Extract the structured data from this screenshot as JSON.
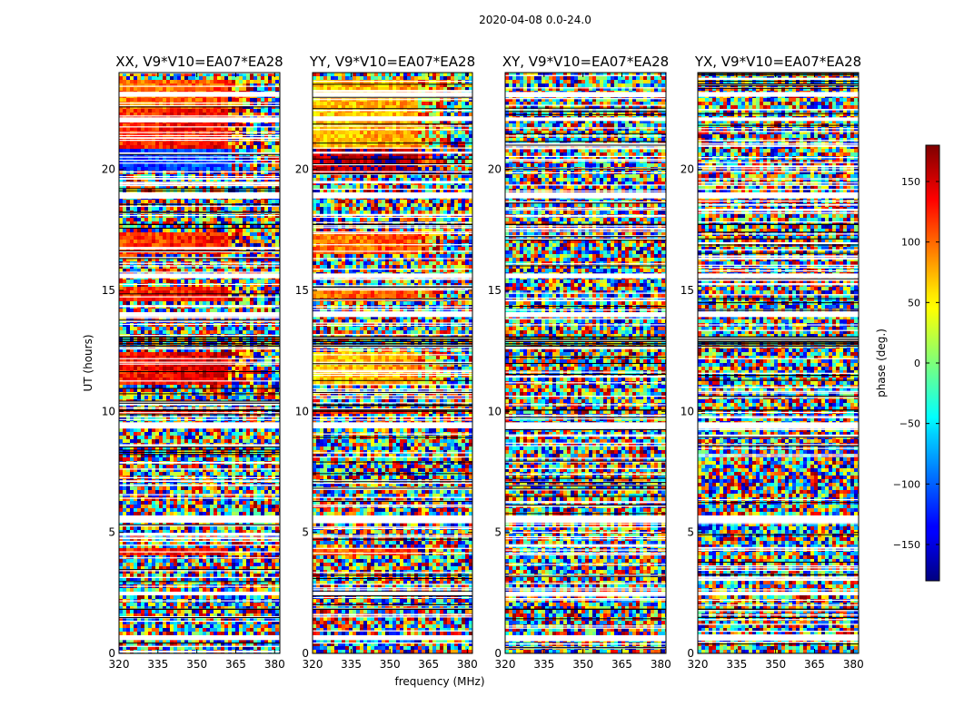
{
  "figure_title": "2020-04-08 0.0-24.0",
  "panels": [
    {
      "title": "XX, V9*V10=EA07*EA28"
    },
    {
      "title": "YY, V9*V10=EA07*EA28"
    },
    {
      "title": "XY, V9*V10=EA07*EA28"
    },
    {
      "title": "YX, V9*V10=EA07*EA28"
    }
  ],
  "xlabel": "frequency (MHz)",
  "ylabel": "UT (hours)",
  "colorbar_label": "phase (deg.)",
  "chart_data": {
    "type": "heatmap",
    "x_range": [
      320,
      382
    ],
    "y_range": [
      0,
      24
    ],
    "x_ticks": [
      320,
      335,
      350,
      365,
      380
    ],
    "y_ticks": [
      0,
      5,
      10,
      15,
      20
    ],
    "colorbar_range": [
      -180,
      180
    ],
    "colorbar_ticks": [
      -150,
      -100,
      -50,
      0,
      50,
      100,
      150
    ],
    "colormap": "jet",
    "panels": [
      {
        "name": "XX, V9*V10=EA07*EA28",
        "coherent_phase_bands_hours": [
          {
            "hours": [
              20.0,
              20.9
            ],
            "phase_deg": -120
          },
          {
            "hours": [
              21.0,
              22.5
            ],
            "phase_deg": 120
          },
          {
            "hours": [
              22.6,
              23.8
            ],
            "phase_deg": 90
          },
          {
            "hours": [
              16.6,
              17.4
            ],
            "phase_deg": 110
          },
          {
            "hours": [
              14.6,
              15.2
            ],
            "phase_deg": 115
          },
          {
            "hours": [
              11.2,
              12.6
            ],
            "phase_deg": 130
          },
          {
            "hours": [
              9.9,
              10.2
            ],
            "phase_deg": 130
          },
          {
            "hours": [
              4.1,
              4.4
            ],
            "phase_deg": 120
          }
        ]
      },
      {
        "name": "YY, V9*V10=EA07*EA28",
        "coherent_phase_bands_hours": [
          {
            "hours": [
              19.9,
              20.9
            ],
            "phase_deg": 160
          },
          {
            "hours": [
              21.0,
              23.8
            ],
            "phase_deg": 60
          },
          {
            "hours": [
              16.6,
              17.4
            ],
            "phase_deg": 90
          },
          {
            "hours": [
              14.6,
              15.2
            ],
            "phase_deg": 95
          },
          {
            "hours": [
              11.2,
              12.6
            ],
            "phase_deg": 60
          },
          {
            "hours": [
              9.9,
              10.2
            ],
            "phase_deg": 120
          },
          {
            "hours": [
              4.1,
              4.4
            ],
            "phase_deg": 100
          }
        ]
      },
      {
        "name": "XY, V9*V10=EA07*EA28",
        "coherent_phase_bands_hours": []
      },
      {
        "name": "YX, V9*V10=EA07*EA28",
        "coherent_phase_bands_hours": []
      }
    ],
    "flagged_gaps_hours": [
      [
        0.55,
        0.75
      ],
      [
        2.4,
        2.55
      ],
      [
        5.4,
        5.7
      ],
      [
        9.3,
        9.55
      ],
      [
        13.9,
        14.1
      ],
      [
        15.5,
        15.7
      ],
      [
        18.8,
        19.05
      ],
      [
        22.0,
        22.15
      ],
      [
        23.0,
        23.2
      ]
    ],
    "flagged_solid_hours": [
      [
        12.7,
        13.1
      ],
      [
        10.0,
        10.08
      ],
      [
        1.8,
        1.85
      ],
      [
        17.7,
        17.75
      ]
    ]
  }
}
